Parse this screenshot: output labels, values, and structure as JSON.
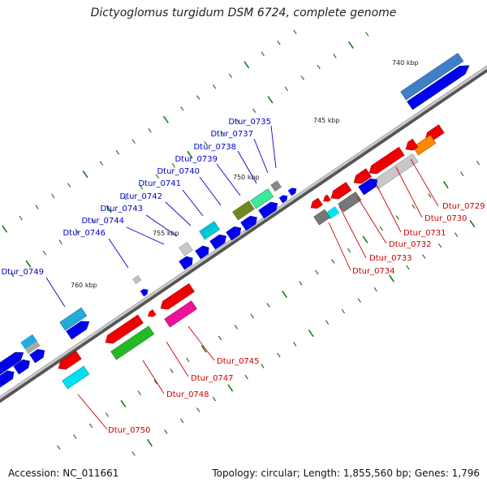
{
  "title": "Dictyoglomus turgidum DSM 6724, complete genome",
  "footer": {
    "accession": "Accession: NC_011661",
    "topology": "Topology: circular; Length: 1,855,560 bp; Genes: 1,796"
  },
  "colors": {
    "backbone": "#8c8c8c",
    "label_blue": "#0000cc",
    "label_red": "#cc0000",
    "tick_green": "#1a7a1a"
  },
  "scale_labels": [
    "740 kbp",
    "745 kbp",
    "750 kbp",
    "755 kbp",
    "760 kbp"
  ],
  "genes_top": [
    "Dtur_0735",
    "Dtur_0737",
    "Dtur_0738",
    "Dtur_0739",
    "Dtur_0740",
    "Dtur_0741",
    "Dtur_0742",
    "Dtur_0743",
    "Dtur_0744",
    "Dtur_0746",
    "Dtur_0749"
  ],
  "genes_bottom": [
    "Dtur_0729",
    "Dtur_0730",
    "Dtur_0731",
    "Dtur_0732",
    "Dtur_0733",
    "Dtur_0734",
    "Dtur_0745",
    "Dtur_0747",
    "Dtur_0748",
    "Dtur_0750"
  ]
}
